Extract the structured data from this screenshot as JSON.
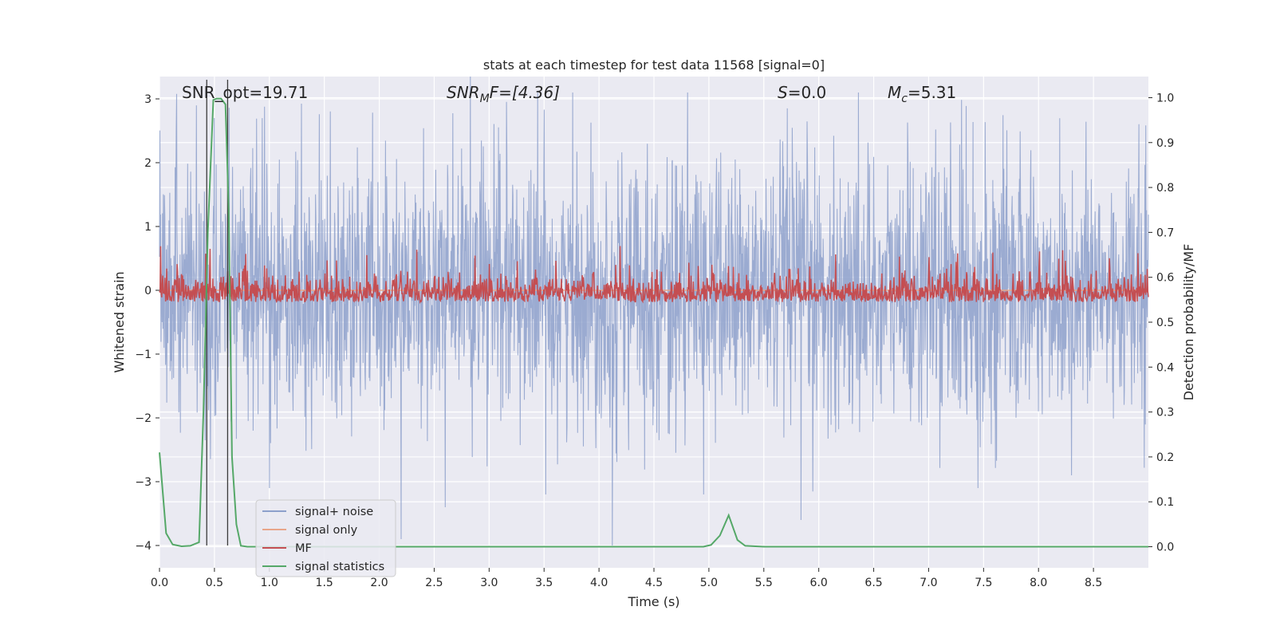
{
  "chart_data": {
    "type": "line",
    "title": "stats at each timestep for test data 11568 [signal=0]",
    "xlabel": "Time (s)",
    "ylabel_left": "Whitened strain",
    "ylabel_right": "Detection probability/MF",
    "xlim": [
      0.0,
      9.0
    ],
    "ylim_left": [
      -4.35,
      3.35
    ],
    "ylim_right": [
      -0.047,
      1.047
    ],
    "x_ticks": [
      "0.0",
      "0.5",
      "1.0",
      "1.5",
      "2.0",
      "2.5",
      "3.0",
      "3.5",
      "4.0",
      "4.5",
      "5.0",
      "5.5",
      "6.0",
      "6.5",
      "7.0",
      "7.5",
      "8.0",
      "8.5"
    ],
    "y_left_ticks": [
      "3",
      "2",
      "1",
      "0",
      "−1",
      "−2",
      "−3",
      "−4"
    ],
    "y_right_ticks": [
      "1.0",
      "0.9",
      "0.8",
      "0.7",
      "0.6",
      "0.5",
      "0.4",
      "0.3",
      "0.2",
      "0.1",
      "0.0"
    ],
    "grid": true,
    "legend_position": "lower-left",
    "annotations": {
      "snr_opt": "SNR_opt=19.71",
      "snr_mf_base": "SNR",
      "snr_mf_sub": "M",
      "snr_mf_rest": "F=[4.36]",
      "s_base": "S",
      "s_rest": "=0.0",
      "mc_base": "M",
      "mc_sub": "c",
      "mc_rest": "=5.31"
    },
    "vertical_lines_x": [
      0.43,
      0.62
    ],
    "series": [
      {
        "name": "signal+ noise",
        "color": "#8da0cb",
        "description": "whitened strain noise, amplitude roughly within ±2 with spikes up to ±3.4",
        "envelope_upper": 2.0,
        "envelope_lower": -2.0,
        "spikes": [
          {
            "x": 2.83,
            "y": 3.35
          },
          {
            "x": 4.12,
            "y": -4.0
          },
          {
            "x": 2.2,
            "y": -3.9
          },
          {
            "x": 5.84,
            "y": -3.6
          },
          {
            "x": 2.6,
            "y": -3.4
          },
          {
            "x": 0.5,
            "y": 2.7
          },
          {
            "x": 8.3,
            "y": -2.9
          },
          {
            "x": 7.45,
            "y": -3.1
          },
          {
            "x": 1.0,
            "y": -3.1
          }
        ]
      },
      {
        "name": "signal only",
        "color": "#e8a58a",
        "values_note": "flat at 0",
        "x": [
          0.0,
          9.0
        ],
        "y": [
          0.0,
          0.0
        ]
      },
      {
        "name": "MF",
        "color": "#c44e52",
        "axis": "right",
        "description": "matched filter output fluctuating between about 0.54 and 0.66 on right axis",
        "baseline": 0.545,
        "typical_peak": 0.6,
        "max_peak": 0.67
      },
      {
        "name": "signal statistics",
        "color": "#55a868",
        "axis": "right",
        "x": [
          0.0,
          0.06,
          0.12,
          0.2,
          0.28,
          0.36,
          0.4,
          0.44,
          0.49,
          0.52,
          0.56,
          0.6,
          0.63,
          0.66,
          0.7,
          0.74,
          0.8,
          1.0,
          2.0,
          3.0,
          4.0,
          4.95,
          5.02,
          5.1,
          5.18,
          5.26,
          5.33,
          5.5,
          6.0,
          7.0,
          8.0,
          9.0
        ],
        "y": [
          0.21,
          0.03,
          0.005,
          0.001,
          0.002,
          0.01,
          0.3,
          0.7,
          0.995,
          0.998,
          0.998,
          0.985,
          0.75,
          0.2,
          0.05,
          0.002,
          0.0,
          0.0,
          0.0,
          0.0,
          0.0,
          0.0,
          0.004,
          0.025,
          0.07,
          0.015,
          0.002,
          0.0,
          0.0,
          0.0,
          0.0,
          0.0
        ]
      }
    ]
  }
}
